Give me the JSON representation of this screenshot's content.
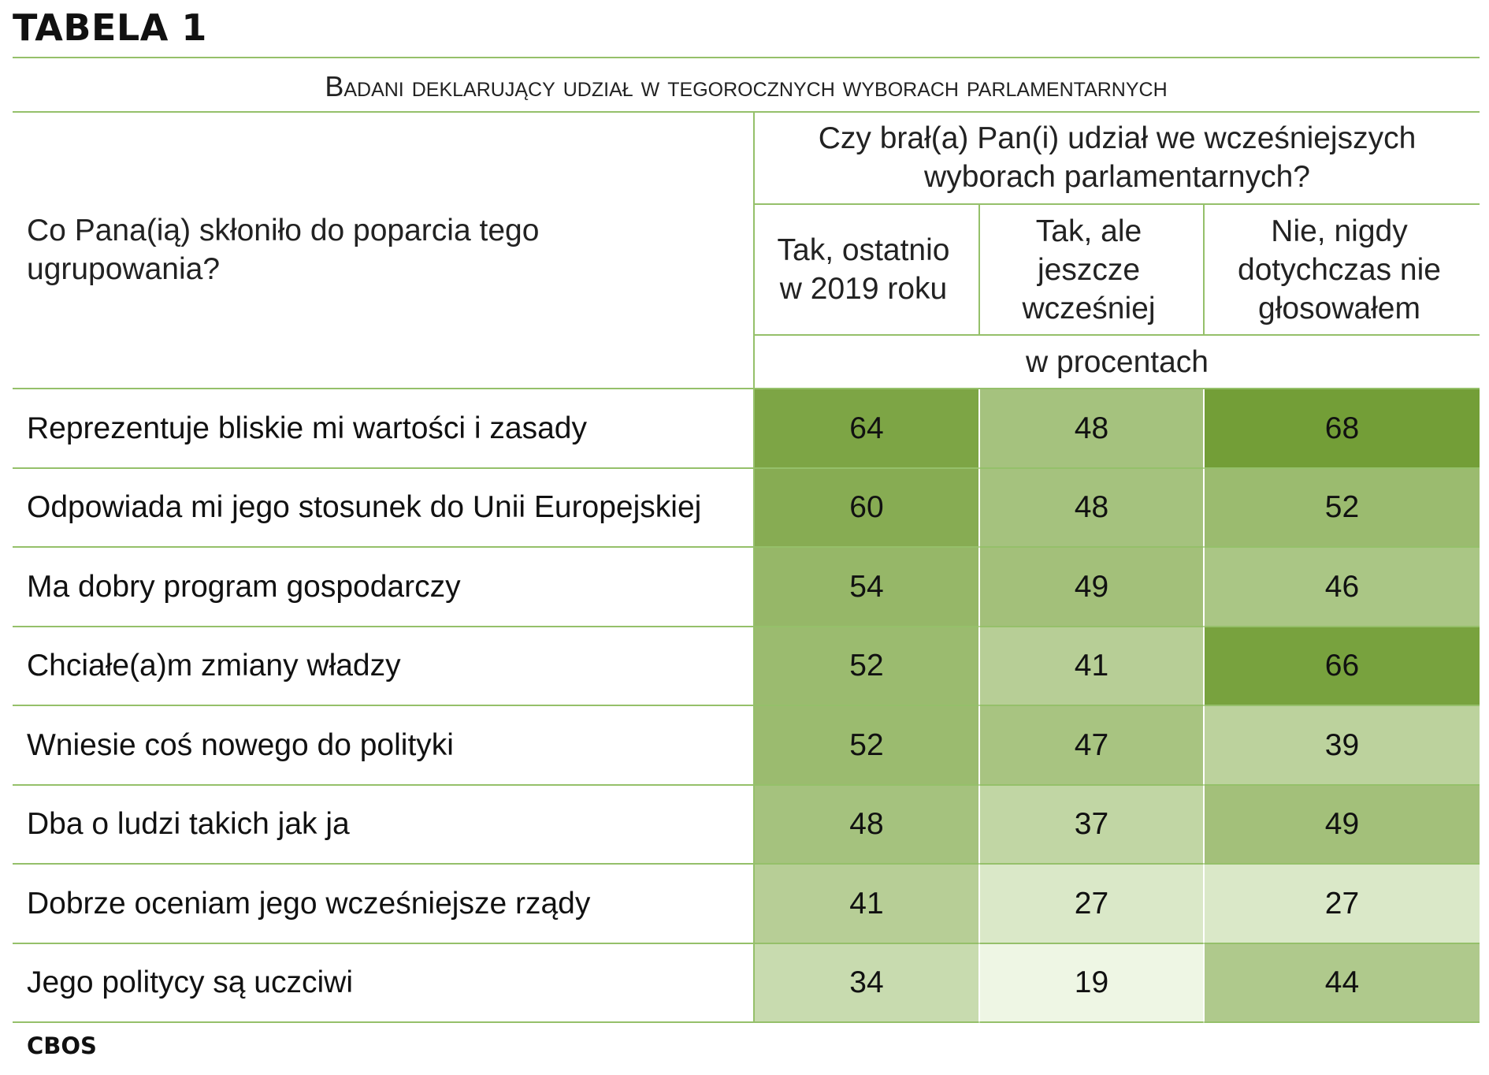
{
  "title": "TABELA 1",
  "subtitle": "Badani deklarujący udział w tegorocznych wyborach parlamentarnych",
  "footer": "CBOS",
  "header": {
    "row_question": "Co Pana(ią) skłoniło do poparcia tego ugrupowania?",
    "column_question": "Czy brał(a) Pan(i) udział we wcześniejszych wyborach parlamentarnych?",
    "columns": [
      "Tak, ostatnio w 2019 roku",
      "Tak, ale jeszcze wcześniej",
      "Nie, nigdy dotychczas nie głosowałem"
    ],
    "unit": "w procentach"
  },
  "colors": {
    "lines": "#95c06a",
    "scale_low": "#eef6e4",
    "scale_high": "#739e37"
  },
  "chart_data": {
    "type": "table",
    "title": "TABELA 1",
    "subtitle": "Badani deklarujący udział w tegorocznych wyborach parlamentarnych",
    "unit": "w procentach",
    "columns": [
      "Tak, ostatnio w 2019 roku",
      "Tak, ale jeszcze wcześniej",
      "Nie, nigdy dotychczas nie głosowałem"
    ],
    "rows": [
      {
        "label": "Reprezentuje bliskie mi wartości i zasady",
        "values": [
          64,
          48,
          68
        ]
      },
      {
        "label": "Odpowiada mi jego stosunek do Unii Europejskiej",
        "values": [
          60,
          48,
          52
        ]
      },
      {
        "label": "Ma dobry program gospodarczy",
        "values": [
          54,
          49,
          46
        ]
      },
      {
        "label": "Chciałe(a)m zmiany władzy",
        "values": [
          52,
          41,
          66
        ]
      },
      {
        "label": "Wniesie coś nowego do polityki",
        "values": [
          52,
          47,
          39
        ]
      },
      {
        "label": "Dba o ludzi takich jak ja",
        "values": [
          48,
          37,
          49
        ]
      },
      {
        "label": "Dobrze oceniam jego wcześniejsze rządy",
        "values": [
          41,
          27,
          27
        ]
      },
      {
        "label": "Jego politycy są uczciwi",
        "values": [
          34,
          19,
          44
        ]
      }
    ]
  }
}
